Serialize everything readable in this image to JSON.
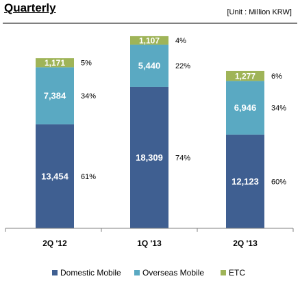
{
  "chart_data": {
    "type": "bar",
    "stacked": true,
    "title": "Quarterly",
    "unit": "[Unit : Million KRW]",
    "categories": [
      "2Q '12",
      "1Q '13",
      "2Q '13"
    ],
    "series": [
      {
        "name": "Domestic Mobile",
        "color": "#3f5f91",
        "values": [
          13454,
          18309,
          12123
        ],
        "labels": [
          "13,454",
          "18,309",
          "12,123"
        ],
        "percent": [
          "61%",
          "74%",
          "60%"
        ]
      },
      {
        "name": "Overseas Mobile",
        "color": "#5aa9c2",
        "values": [
          7384,
          5440,
          6946
        ],
        "labels": [
          "7,384",
          "5,440",
          "6,946"
        ],
        "percent": [
          "34%",
          "22%",
          "34%"
        ]
      },
      {
        "name": "ETC",
        "color": "#9fb458",
        "values": [
          1171,
          1107,
          1277
        ],
        "labels": [
          "1,171",
          "1,107",
          "1,277"
        ],
        "percent": [
          "5%",
          "4%",
          "6%"
        ]
      }
    ],
    "ylim": [
      0,
      26000
    ],
    "grid": false,
    "legend_position": "bottom"
  }
}
